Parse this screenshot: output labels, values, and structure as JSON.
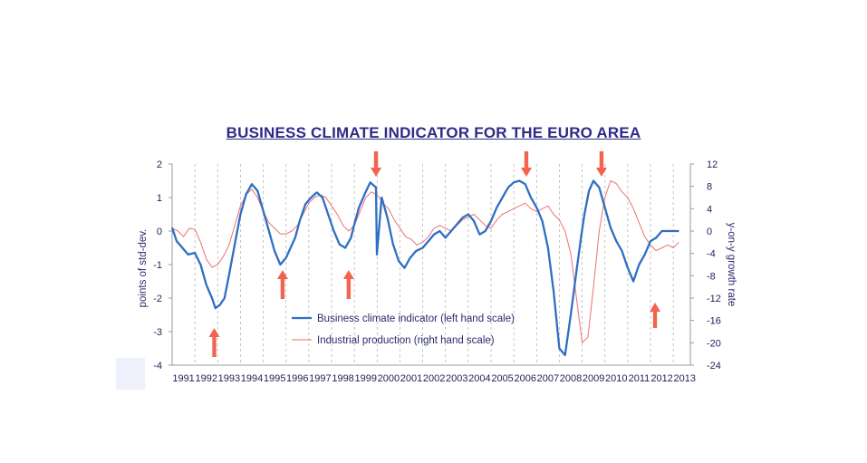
{
  "chart_data": {
    "type": "line",
    "title": "BUSINESS CLIMATE INDICATOR FOR THE EURO AREA",
    "ylabel_left": "points of std-dev.",
    "ylabel_right": "y-on-y growth rate",
    "left_ticks": [
      "2",
      "1",
      "0",
      "-1",
      "-2",
      "-3",
      "-4"
    ],
    "right_ticks": [
      "12",
      "8",
      "4",
      "0",
      "-4",
      "-8",
      "-12",
      "-16",
      "-20",
      "-24"
    ],
    "x_ticks": [
      "1991",
      "1992",
      "1993",
      "1994",
      "1995",
      "1996",
      "1997",
      "1998",
      "1999",
      "2000",
      "2001",
      "2002",
      "2003",
      "2004",
      "2005",
      "2006",
      "2007",
      "2008",
      "2009",
      "2010",
      "2011",
      "2012",
      "2013"
    ],
    "ylim_left": [
      -4,
      2
    ],
    "ylim_right": [
      -24,
      12
    ],
    "xlim": [
      1991.0,
      2013.75
    ],
    "grid": "vertical dashed lines at each year",
    "colors": {
      "bci": "#2f6fc2",
      "ip": "#f07070",
      "arrow": "#f26350",
      "title": "#2e2a86"
    },
    "legend": {
      "position": "bottom-center",
      "items": [
        {
          "label": "Business climate indicator (left hand scale)",
          "color": "#2f6fc2"
        },
        {
          "label": "Industrial production (right hand scale)",
          "color": "#f07070"
        }
      ]
    },
    "series": [
      {
        "name": "Business climate indicator (left hand scale)",
        "axis": "left",
        "x": [
          1991.0,
          1991.2,
          1991.45,
          1991.7,
          1992.0,
          1992.25,
          1992.5,
          1992.75,
          1992.9,
          1993.1,
          1993.3,
          1993.5,
          1993.75,
          1994.0,
          1994.25,
          1994.5,
          1994.75,
          1995.0,
          1995.25,
          1995.5,
          1995.75,
          1996.0,
          1996.2,
          1996.4,
          1996.6,
          1996.85,
          1997.1,
          1997.35,
          1997.6,
          1997.85,
          1998.1,
          1998.35,
          1998.6,
          1998.85,
          1999.0,
          1999.2,
          1999.45,
          1999.7,
          1999.95,
          2000.2,
          2000.45,
          2000.7,
          2000.95,
          2001.2,
          2001.45,
          2001.7,
          1999.99,
          2002.0,
          2002.25,
          2002.5,
          2002.75,
          2003.0,
          2003.25,
          2003.5,
          2003.75,
          2004.0,
          2004.25,
          2004.5,
          2004.75,
          2005.0,
          2005.25,
          2005.5,
          2005.75,
          2006.0,
          2006.25,
          2006.5,
          2006.75,
          2007.0,
          2007.25,
          2007.5,
          2007.75,
          2008.0,
          2008.25,
          2008.5,
          2008.75,
          2008.95,
          2009.1,
          2009.3,
          2009.5,
          2009.75,
          2010.0,
          2010.25,
          2010.5,
          2010.75,
          2011.0,
          2011.25,
          2011.5,
          2011.75,
          2012.0,
          2012.25,
          2012.5,
          2012.75,
          2013.0,
          2013.25
        ],
        "values": [
          0.1,
          -0.3,
          -0.5,
          -0.7,
          -0.65,
          -1.0,
          -1.6,
          -2.0,
          -2.3,
          -2.2,
          -2.0,
          -1.3,
          -0.4,
          0.5,
          1.1,
          1.4,
          1.2,
          0.6,
          0.0,
          -0.6,
          -1.0,
          -0.8,
          -0.5,
          -0.2,
          0.3,
          0.8,
          1.0,
          1.15,
          1.0,
          0.5,
          0.0,
          -0.4,
          -0.5,
          -0.2,
          0.2,
          0.7,
          1.1,
          1.45,
          1.3,
          1.0,
          0.4,
          -0.4,
          -0.9,
          -1.1,
          -0.8,
          -0.6,
          -0.7,
          -0.5,
          -0.3,
          -0.1,
          0.0,
          -0.2,
          0.0,
          0.2,
          0.4,
          0.5,
          0.3,
          -0.1,
          0.0,
          0.3,
          0.7,
          1.0,
          1.3,
          1.45,
          1.5,
          1.4,
          1.0,
          0.7,
          0.3,
          -0.5,
          -1.8,
          -3.5,
          -3.7,
          -2.5,
          -1.2,
          -0.2,
          0.5,
          1.2,
          1.5,
          1.3,
          0.7,
          0.1,
          -0.3,
          -0.6,
          -1.1,
          -1.5,
          -1.0,
          -0.7,
          -0.3,
          -0.2,
          0.0,
          0.0,
          0.0,
          0.0
        ]
      },
      {
        "name": "Industrial production (right hand scale)",
        "axis": "right",
        "x": [
          1991.0,
          1991.25,
          1991.5,
          1991.75,
          1992.0,
          1992.25,
          1992.5,
          1992.75,
          1993.0,
          1993.25,
          1993.5,
          1993.75,
          1994.0,
          1994.25,
          1994.5,
          1994.75,
          1995.0,
          1995.25,
          1995.5,
          1995.75,
          1996.0,
          1996.25,
          1996.5,
          1996.75,
          1997.0,
          1997.25,
          1997.5,
          1997.75,
          1998.0,
          1998.25,
          1998.5,
          1998.75,
          1999.0,
          1999.25,
          1999.5,
          1999.75,
          2000.0,
          2000.25,
          2000.5,
          2000.75,
          2001.0,
          2001.25,
          2001.5,
          2001.75,
          2002.0,
          2002.25,
          2002.5,
          2002.75,
          2003.0,
          2003.25,
          2003.5,
          2003.75,
          2004.0,
          2004.25,
          2004.5,
          2004.75,
          2005.0,
          2005.25,
          2005.5,
          2005.75,
          2006.0,
          2006.25,
          2006.5,
          2006.75,
          2007.0,
          2007.25,
          2007.5,
          2007.75,
          2008.0,
          2008.25,
          2008.5,
          2008.75,
          2009.0,
          2009.25,
          2009.5,
          2009.75,
          2010.0,
          2010.25,
          2010.5,
          2010.75,
          2011.0,
          2011.25,
          2011.5,
          2011.75,
          2012.0,
          2012.25,
          2012.5,
          2012.75,
          2013.0,
          2013.25
        ],
        "values": [
          0.5,
          0.0,
          -1.0,
          0.5,
          0.3,
          -2.0,
          -5.0,
          -6.5,
          -6.0,
          -4.5,
          -2.5,
          1.0,
          4.5,
          6.5,
          7.5,
          6.0,
          3.5,
          1.5,
          0.5,
          -0.5,
          -0.5,
          0.0,
          1.0,
          3.0,
          5.0,
          6.0,
          6.5,
          6.0,
          4.5,
          3.0,
          1.0,
          0.0,
          1.0,
          3.5,
          6.0,
          7.0,
          6.5,
          5.0,
          4.0,
          2.0,
          0.5,
          -1.0,
          -1.5,
          -2.5,
          -2.0,
          -1.0,
          0.5,
          1.0,
          0.5,
          0.0,
          1.0,
          2.0,
          2.5,
          3.0,
          2.0,
          1.0,
          0.5,
          2.0,
          3.0,
          3.5,
          4.0,
          4.5,
          5.0,
          4.0,
          3.5,
          4.0,
          4.5,
          3.0,
          2.0,
          0.0,
          -4.0,
          -12.0,
          -20.0,
          -19.0,
          -10.0,
          0.0,
          6.0,
          9.0,
          8.5,
          7.0,
          6.0,
          4.0,
          1.5,
          -1.0,
          -2.5,
          -3.5,
          -3.0,
          -2.5,
          -3.0,
          -2.0
        ]
      }
    ],
    "arrows": [
      {
        "x": 1992.85,
        "direction": "up"
      },
      {
        "x": 1995.85,
        "direction": "up"
      },
      {
        "x": 1998.75,
        "direction": "up"
      },
      {
        "x": 1999.95,
        "direction": "down"
      },
      {
        "x": 2006.55,
        "direction": "down"
      },
      {
        "x": 2009.85,
        "direction": "down"
      },
      {
        "x": 2012.2,
        "direction": "up"
      }
    ]
  }
}
